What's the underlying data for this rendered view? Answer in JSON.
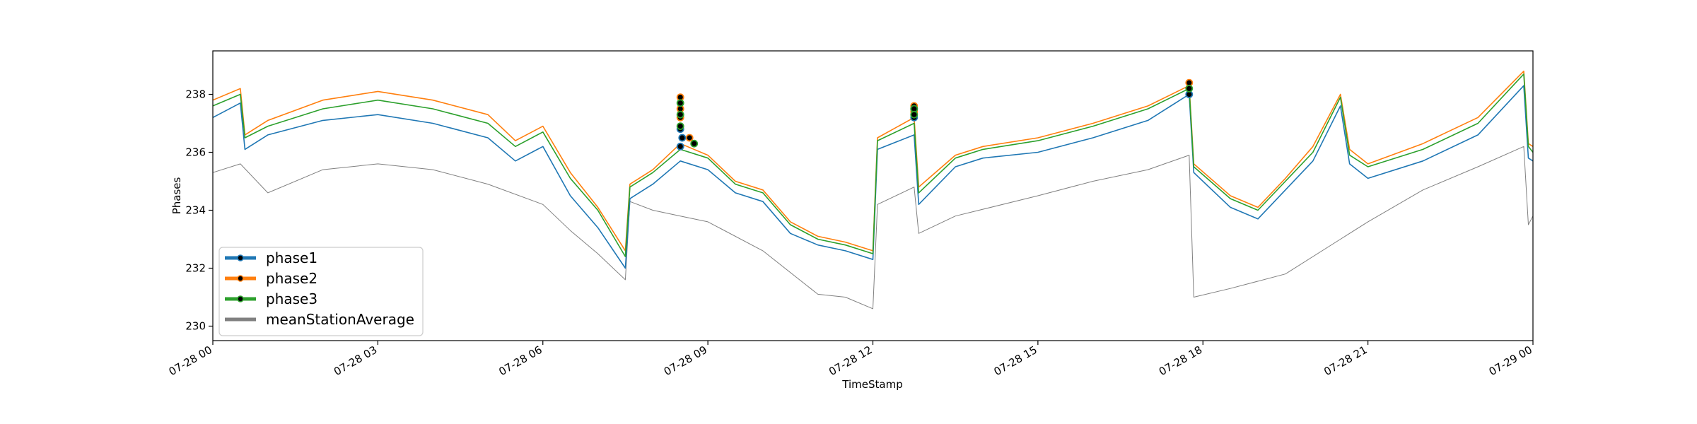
{
  "chart_data": {
    "type": "line",
    "title": "",
    "xlabel": "TimeStamp",
    "ylabel": "Phases",
    "x_range": [
      "07-28 00:00",
      "07-29 00:00"
    ],
    "ylim": [
      229.5,
      239.5
    ],
    "x_ticks": [
      "07-28 00",
      "07-28 03",
      "07-28 06",
      "07-28 09",
      "07-28 12",
      "07-28 15",
      "07-28 18",
      "07-28 21",
      "07-29 00"
    ],
    "y_ticks": [
      "230",
      "232",
      "234",
      "236",
      "238"
    ],
    "grid": false,
    "legend_position": "lower-left",
    "colors": {
      "phase1": "#1f77b4",
      "phase2": "#ff7f0e",
      "phase3": "#2ca02c",
      "meanStationAverage": "#808080"
    },
    "series": [
      {
        "name": "phase1",
        "x": [
          "07-28 00:00",
          "07-28 00:30",
          "07-28 00:35",
          "07-28 01:00",
          "07-28 02:00",
          "07-28 03:00",
          "07-28 04:00",
          "07-28 05:00",
          "07-28 05:30",
          "07-28 06:00",
          "07-28 06:30",
          "07-28 07:00",
          "07-28 07:30",
          "07-28 07:35",
          "07-28 08:00",
          "07-28 08:30",
          "07-28 09:00",
          "07-28 09:30",
          "07-28 10:00",
          "07-28 10:30",
          "07-28 11:00",
          "07-28 11:30",
          "07-28 12:00",
          "07-28 12:05",
          "07-28 12:45",
          "07-28 12:50",
          "07-28 13:30",
          "07-28 14:00",
          "07-28 15:00",
          "07-28 16:00",
          "07-28 17:00",
          "07-28 17:45",
          "07-28 17:50",
          "07-28 18:30",
          "07-28 19:00",
          "07-28 19:30",
          "07-28 20:00",
          "07-28 20:30",
          "07-28 20:40",
          "07-28 21:00",
          "07-28 22:00",
          "07-28 23:00",
          "07-28 23:50",
          "07-28 23:55",
          "07-29 00:00"
        ],
        "values": [
          237.2,
          237.7,
          236.1,
          236.6,
          237.1,
          237.3,
          237.0,
          236.5,
          235.7,
          236.2,
          234.5,
          233.4,
          232.0,
          234.4,
          234.9,
          235.7,
          235.4,
          234.6,
          234.3,
          233.2,
          232.8,
          232.6,
          232.3,
          236.1,
          236.6,
          234.2,
          235.5,
          235.8,
          236.0,
          236.5,
          237.1,
          238.0,
          235.3,
          234.1,
          233.7,
          234.7,
          235.7,
          237.6,
          235.6,
          235.1,
          235.7,
          236.6,
          238.3,
          235.8,
          235.7
        ]
      },
      {
        "name": "phase2",
        "x": [
          "07-28 00:00",
          "07-28 00:30",
          "07-28 00:35",
          "07-28 01:00",
          "07-28 02:00",
          "07-28 03:00",
          "07-28 04:00",
          "07-28 05:00",
          "07-28 05:30",
          "07-28 06:00",
          "07-28 06:30",
          "07-28 07:00",
          "07-28 07:30",
          "07-28 07:35",
          "07-28 08:00",
          "07-28 08:30",
          "07-28 09:00",
          "07-28 09:30",
          "07-28 10:00",
          "07-28 10:30",
          "07-28 11:00",
          "07-28 11:30",
          "07-28 12:00",
          "07-28 12:05",
          "07-28 12:45",
          "07-28 12:50",
          "07-28 13:30",
          "07-28 14:00",
          "07-28 15:00",
          "07-28 16:00",
          "07-28 17:00",
          "07-28 17:45",
          "07-28 17:50",
          "07-28 18:30",
          "07-28 19:00",
          "07-28 19:30",
          "07-28 20:00",
          "07-28 20:30",
          "07-28 20:40",
          "07-28 21:00",
          "07-28 22:00",
          "07-28 23:00",
          "07-28 23:50",
          "07-28 23:55",
          "07-29 00:00"
        ],
        "values": [
          237.8,
          238.2,
          236.6,
          237.1,
          237.8,
          238.1,
          237.8,
          237.3,
          236.4,
          236.9,
          235.3,
          234.1,
          232.6,
          234.9,
          235.4,
          236.3,
          235.9,
          235.0,
          234.7,
          233.6,
          233.1,
          232.9,
          232.6,
          236.5,
          237.2,
          234.8,
          235.9,
          236.2,
          236.5,
          237.0,
          237.6,
          238.3,
          235.6,
          234.5,
          234.1,
          235.1,
          236.2,
          238.0,
          236.1,
          235.6,
          236.3,
          237.2,
          238.8,
          236.3,
          236.2
        ]
      },
      {
        "name": "phase3",
        "x": [
          "07-28 00:00",
          "07-28 00:30",
          "07-28 00:35",
          "07-28 01:00",
          "07-28 02:00",
          "07-28 03:00",
          "07-28 04:00",
          "07-28 05:00",
          "07-28 05:30",
          "07-28 06:00",
          "07-28 06:30",
          "07-28 07:00",
          "07-28 07:30",
          "07-28 07:35",
          "07-28 08:00",
          "07-28 08:30",
          "07-28 09:00",
          "07-28 09:30",
          "07-28 10:00",
          "07-28 10:30",
          "07-28 11:00",
          "07-28 11:30",
          "07-28 12:00",
          "07-28 12:05",
          "07-28 12:45",
          "07-28 12:50",
          "07-28 13:30",
          "07-28 14:00",
          "07-28 15:00",
          "07-28 16:00",
          "07-28 17:00",
          "07-28 17:45",
          "07-28 17:50",
          "07-28 18:30",
          "07-28 19:00",
          "07-28 19:30",
          "07-28 20:00",
          "07-28 20:30",
          "07-28 20:40",
          "07-28 21:00",
          "07-28 22:00",
          "07-28 23:00",
          "07-28 23:50",
          "07-28 23:55",
          "07-29 00:00"
        ],
        "values": [
          237.6,
          238.0,
          236.5,
          236.9,
          237.5,
          237.8,
          237.5,
          237.0,
          236.2,
          236.7,
          235.1,
          234.0,
          232.4,
          234.8,
          235.3,
          236.1,
          235.8,
          234.9,
          234.6,
          233.5,
          233.0,
          232.8,
          232.5,
          236.4,
          237.0,
          234.6,
          235.8,
          236.1,
          236.4,
          236.9,
          237.5,
          238.2,
          235.5,
          234.4,
          234.0,
          235.0,
          236.0,
          237.9,
          235.9,
          235.5,
          236.1,
          237.0,
          238.7,
          236.2,
          236.0
        ]
      },
      {
        "name": "meanStationAverage",
        "x": [
          "07-28 00:00",
          "07-28 00:30",
          "07-28 01:00",
          "07-28 02:00",
          "07-28 03:00",
          "07-28 04:00",
          "07-28 05:00",
          "07-28 06:00",
          "07-28 06:30",
          "07-28 07:00",
          "07-28 07:30",
          "07-28 07:35",
          "07-28 08:00",
          "07-28 08:30",
          "07-28 09:00",
          "07-28 10:00",
          "07-28 11:00",
          "07-28 11:30",
          "07-28 12:00",
          "07-28 12:05",
          "07-28 12:45",
          "07-28 12:50",
          "07-28 13:30",
          "07-28 15:00",
          "07-28 16:00",
          "07-28 17:00",
          "07-28 17:45",
          "07-28 17:50",
          "07-28 18:30",
          "07-28 19:30",
          "07-28 20:30",
          "07-28 21:00",
          "07-28 22:00",
          "07-28 23:00",
          "07-28 23:50",
          "07-28 23:55",
          "07-29 00:00"
        ],
        "values": [
          235.3,
          235.6,
          234.6,
          235.4,
          235.6,
          235.4,
          234.9,
          234.2,
          233.3,
          232.5,
          231.6,
          234.3,
          234.0,
          233.8,
          233.6,
          232.6,
          231.1,
          231.0,
          230.6,
          234.2,
          234.8,
          233.2,
          233.8,
          234.5,
          235.0,
          235.4,
          235.9,
          231.0,
          231.3,
          231.8,
          233.0,
          233.6,
          234.7,
          235.5,
          236.2,
          233.5,
          233.8
        ]
      }
    ],
    "markers": {
      "phase1": {
        "x": [
          "07-28 08:30",
          "07-28 08:30",
          "07-28 08:32",
          "07-28 12:45",
          "07-28 12:45",
          "07-28 17:45"
        ],
        "values": [
          236.2,
          236.8,
          236.5,
          237.2,
          237.5,
          238.0
        ]
      },
      "phase2": {
        "x": [
          "07-28 08:30",
          "07-28 08:30",
          "07-28 08:30",
          "07-28 08:40",
          "07-28 12:45",
          "07-28 12:45",
          "07-28 17:45"
        ],
        "values": [
          237.9,
          237.5,
          237.2,
          236.5,
          237.6,
          237.4,
          238.4
        ]
      },
      "phase3": {
        "x": [
          "07-28 08:30",
          "07-28 08:30",
          "07-28 08:30",
          "07-28 08:45",
          "07-28 12:45",
          "07-28 12:45",
          "07-28 17:45"
        ],
        "values": [
          237.7,
          237.3,
          236.9,
          236.3,
          237.5,
          237.3,
          238.2
        ]
      }
    },
    "legend": [
      "phase1",
      "phase2",
      "phase3",
      "meanStationAverage"
    ]
  }
}
